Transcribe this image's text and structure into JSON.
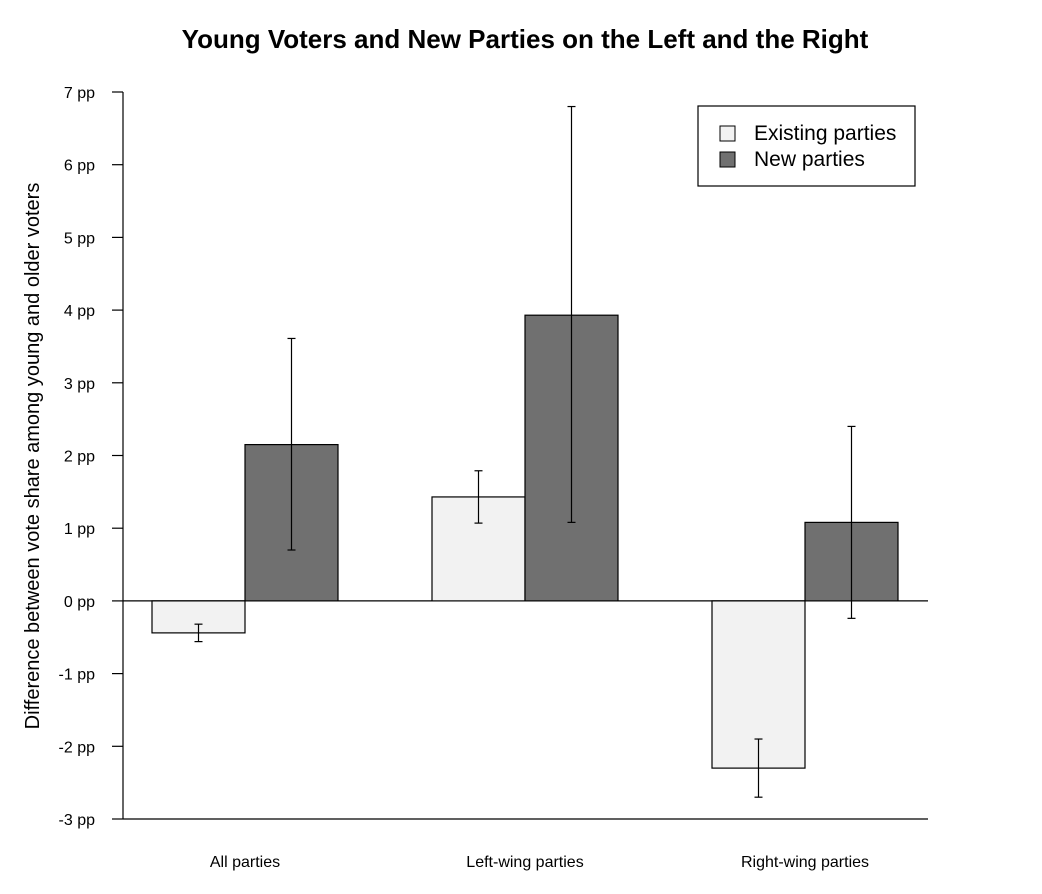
{
  "chart_data": {
    "type": "bar",
    "title": "Young Voters and New Parties on the Left and the Right",
    "xlabel": "",
    "ylabel": "Difference between vote share among young and older voters",
    "ylim": [
      -3,
      7
    ],
    "yticks": [
      -3,
      -2,
      -1,
      0,
      1,
      2,
      3,
      4,
      5,
      6,
      7
    ],
    "ytick_suffix": " pp",
    "categories": [
      "All parties",
      "Left-wing parties",
      "Right-wing parties"
    ],
    "series": [
      {
        "name": "Existing parties",
        "color": "#f2f2f2",
        "values": [
          -0.44,
          1.43,
          -2.3
        ],
        "error_low": [
          -0.56,
          1.07,
          -2.7
        ],
        "error_high": [
          -0.32,
          1.79,
          -1.9
        ]
      },
      {
        "name": "New parties",
        "color": "#707070",
        "values": [
          2.15,
          3.93,
          1.08
        ],
        "error_low": [
          0.7,
          1.08,
          -0.24
        ],
        "error_high": [
          3.61,
          6.8,
          2.4
        ]
      }
    ],
    "legend_position": "top-right",
    "grid": false
  }
}
